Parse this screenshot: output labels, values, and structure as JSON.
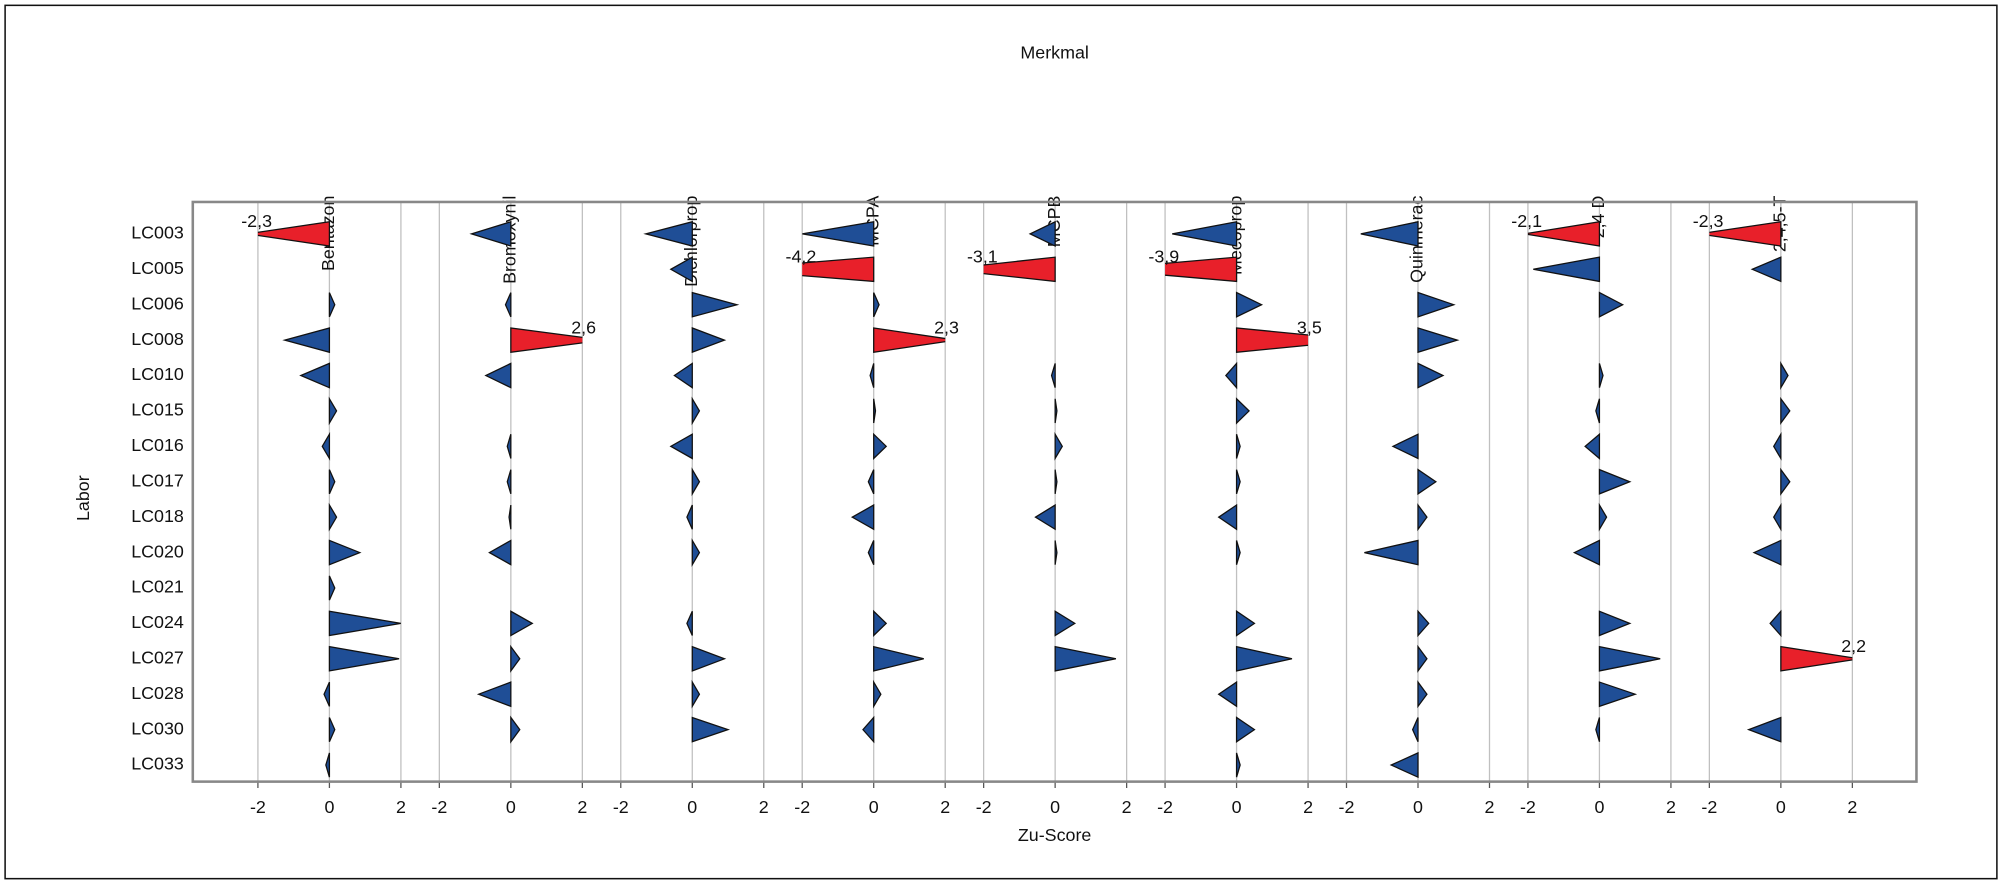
{
  "chart_data": {
    "type": "triangle",
    "title": "Merkmal",
    "x_label": "Zu-Score",
    "y_label": "Labor",
    "categories": [
      "LC003",
      "LC005",
      "LC006",
      "LC008",
      "LC010",
      "LC015",
      "LC016",
      "LC017",
      "LC018",
      "LC020",
      "LC021",
      "LC024",
      "LC027",
      "LC028",
      "LC030",
      "LC033"
    ],
    "xlim": [
      -2,
      2
    ],
    "xticks": [
      -2,
      0,
      2
    ],
    "grid": true,
    "color": "#1f4e96",
    "highlight_color": "#e8202a",
    "highlight_above": 2,
    "series": [
      {
        "name": "Bentazon",
        "values": [
          -2.3,
          null,
          0.15,
          -1.25,
          -0.8,
          0.2,
          -0.2,
          0.15,
          0.2,
          0.85,
          0.15,
          2.0,
          1.95,
          -0.15,
          0.15,
          -0.1
        ],
        "value_labels": [
          "-2,3",
          null,
          null,
          null,
          null,
          null,
          null,
          null,
          null,
          null,
          null,
          null,
          null,
          null,
          null,
          null
        ]
      },
      {
        "name": "Bromoxynil",
        "values": [
          -1.1,
          null,
          -0.15,
          2.6,
          -0.7,
          null,
          -0.1,
          -0.1,
          -0.05,
          -0.6,
          null,
          0.6,
          0.25,
          -0.9,
          0.25,
          null
        ],
        "value_labels": [
          null,
          null,
          null,
          "2,6",
          null,
          null,
          null,
          null,
          null,
          null,
          null,
          null,
          null,
          null,
          null,
          null
        ]
      },
      {
        "name": "Dichlorprop",
        "values": [
          -1.3,
          -0.6,
          1.25,
          0.9,
          -0.5,
          0.2,
          -0.6,
          0.2,
          -0.15,
          0.2,
          null,
          -0.15,
          0.9,
          0.2,
          1.0,
          null
        ],
        "value_labels": [
          null,
          null,
          null,
          null,
          null,
          null,
          null,
          null,
          null,
          null,
          null,
          null,
          null,
          null,
          null,
          null
        ]
      },
      {
        "name": "MCPA",
        "values": [
          -2.0,
          -4.2,
          0.15,
          2.3,
          -0.1,
          0.05,
          0.35,
          -0.15,
          -0.6,
          -0.15,
          null,
          0.35,
          1.4,
          0.2,
          -0.3,
          null
        ],
        "value_labels": [
          null,
          "-4,2",
          null,
          "2,3",
          null,
          null,
          null,
          null,
          null,
          null,
          null,
          null,
          null,
          null,
          null,
          null
        ]
      },
      {
        "name": "MCPB",
        "values": [
          -0.7,
          -3.1,
          null,
          null,
          -0.1,
          0.05,
          0.2,
          0.05,
          -0.55,
          0.05,
          null,
          0.55,
          1.7,
          null,
          null,
          null
        ],
        "value_labels": [
          null,
          "-3,1",
          null,
          null,
          null,
          null,
          null,
          null,
          null,
          null,
          null,
          null,
          null,
          null,
          null,
          null
        ]
      },
      {
        "name": "Mecoprop",
        "values": [
          -1.8,
          -3.9,
          0.7,
          3.5,
          -0.3,
          0.35,
          0.1,
          0.1,
          -0.5,
          0.1,
          null,
          0.5,
          1.55,
          -0.5,
          0.5,
          0.1
        ],
        "value_labels": [
          null,
          "-3,9",
          null,
          "3,5",
          null,
          null,
          null,
          null,
          null,
          null,
          null,
          null,
          null,
          null,
          null,
          null
        ]
      },
      {
        "name": "Quinmerac",
        "values": [
          -1.6,
          null,
          1.0,
          1.1,
          0.7,
          null,
          -0.7,
          0.5,
          0.25,
          -1.5,
          null,
          0.3,
          0.25,
          0.25,
          -0.15,
          -0.75
        ],
        "value_labels": [
          null,
          null,
          null,
          null,
          null,
          null,
          null,
          null,
          null,
          null,
          null,
          null,
          null,
          null,
          null,
          null
        ]
      },
      {
        "name": "2,4 D",
        "values": [
          -2.1,
          -1.85,
          0.65,
          null,
          0.1,
          -0.1,
          -0.4,
          0.85,
          0.2,
          -0.7,
          null,
          0.85,
          1.7,
          1.0,
          -0.1,
          null
        ],
        "value_labels": [
          "-2,1",
          null,
          null,
          null,
          null,
          null,
          null,
          null,
          null,
          null,
          null,
          null,
          null,
          null,
          null,
          null
        ]
      },
      {
        "name": "2,4,5-T",
        "values": [
          -2.3,
          -0.8,
          null,
          null,
          0.2,
          0.25,
          -0.2,
          0.25,
          -0.2,
          -0.75,
          null,
          -0.3,
          2.2,
          null,
          -0.9,
          null
        ],
        "value_labels": [
          "-2,3",
          null,
          null,
          null,
          null,
          null,
          null,
          null,
          null,
          null,
          null,
          null,
          "2,2",
          null,
          null,
          null
        ]
      }
    ]
  }
}
